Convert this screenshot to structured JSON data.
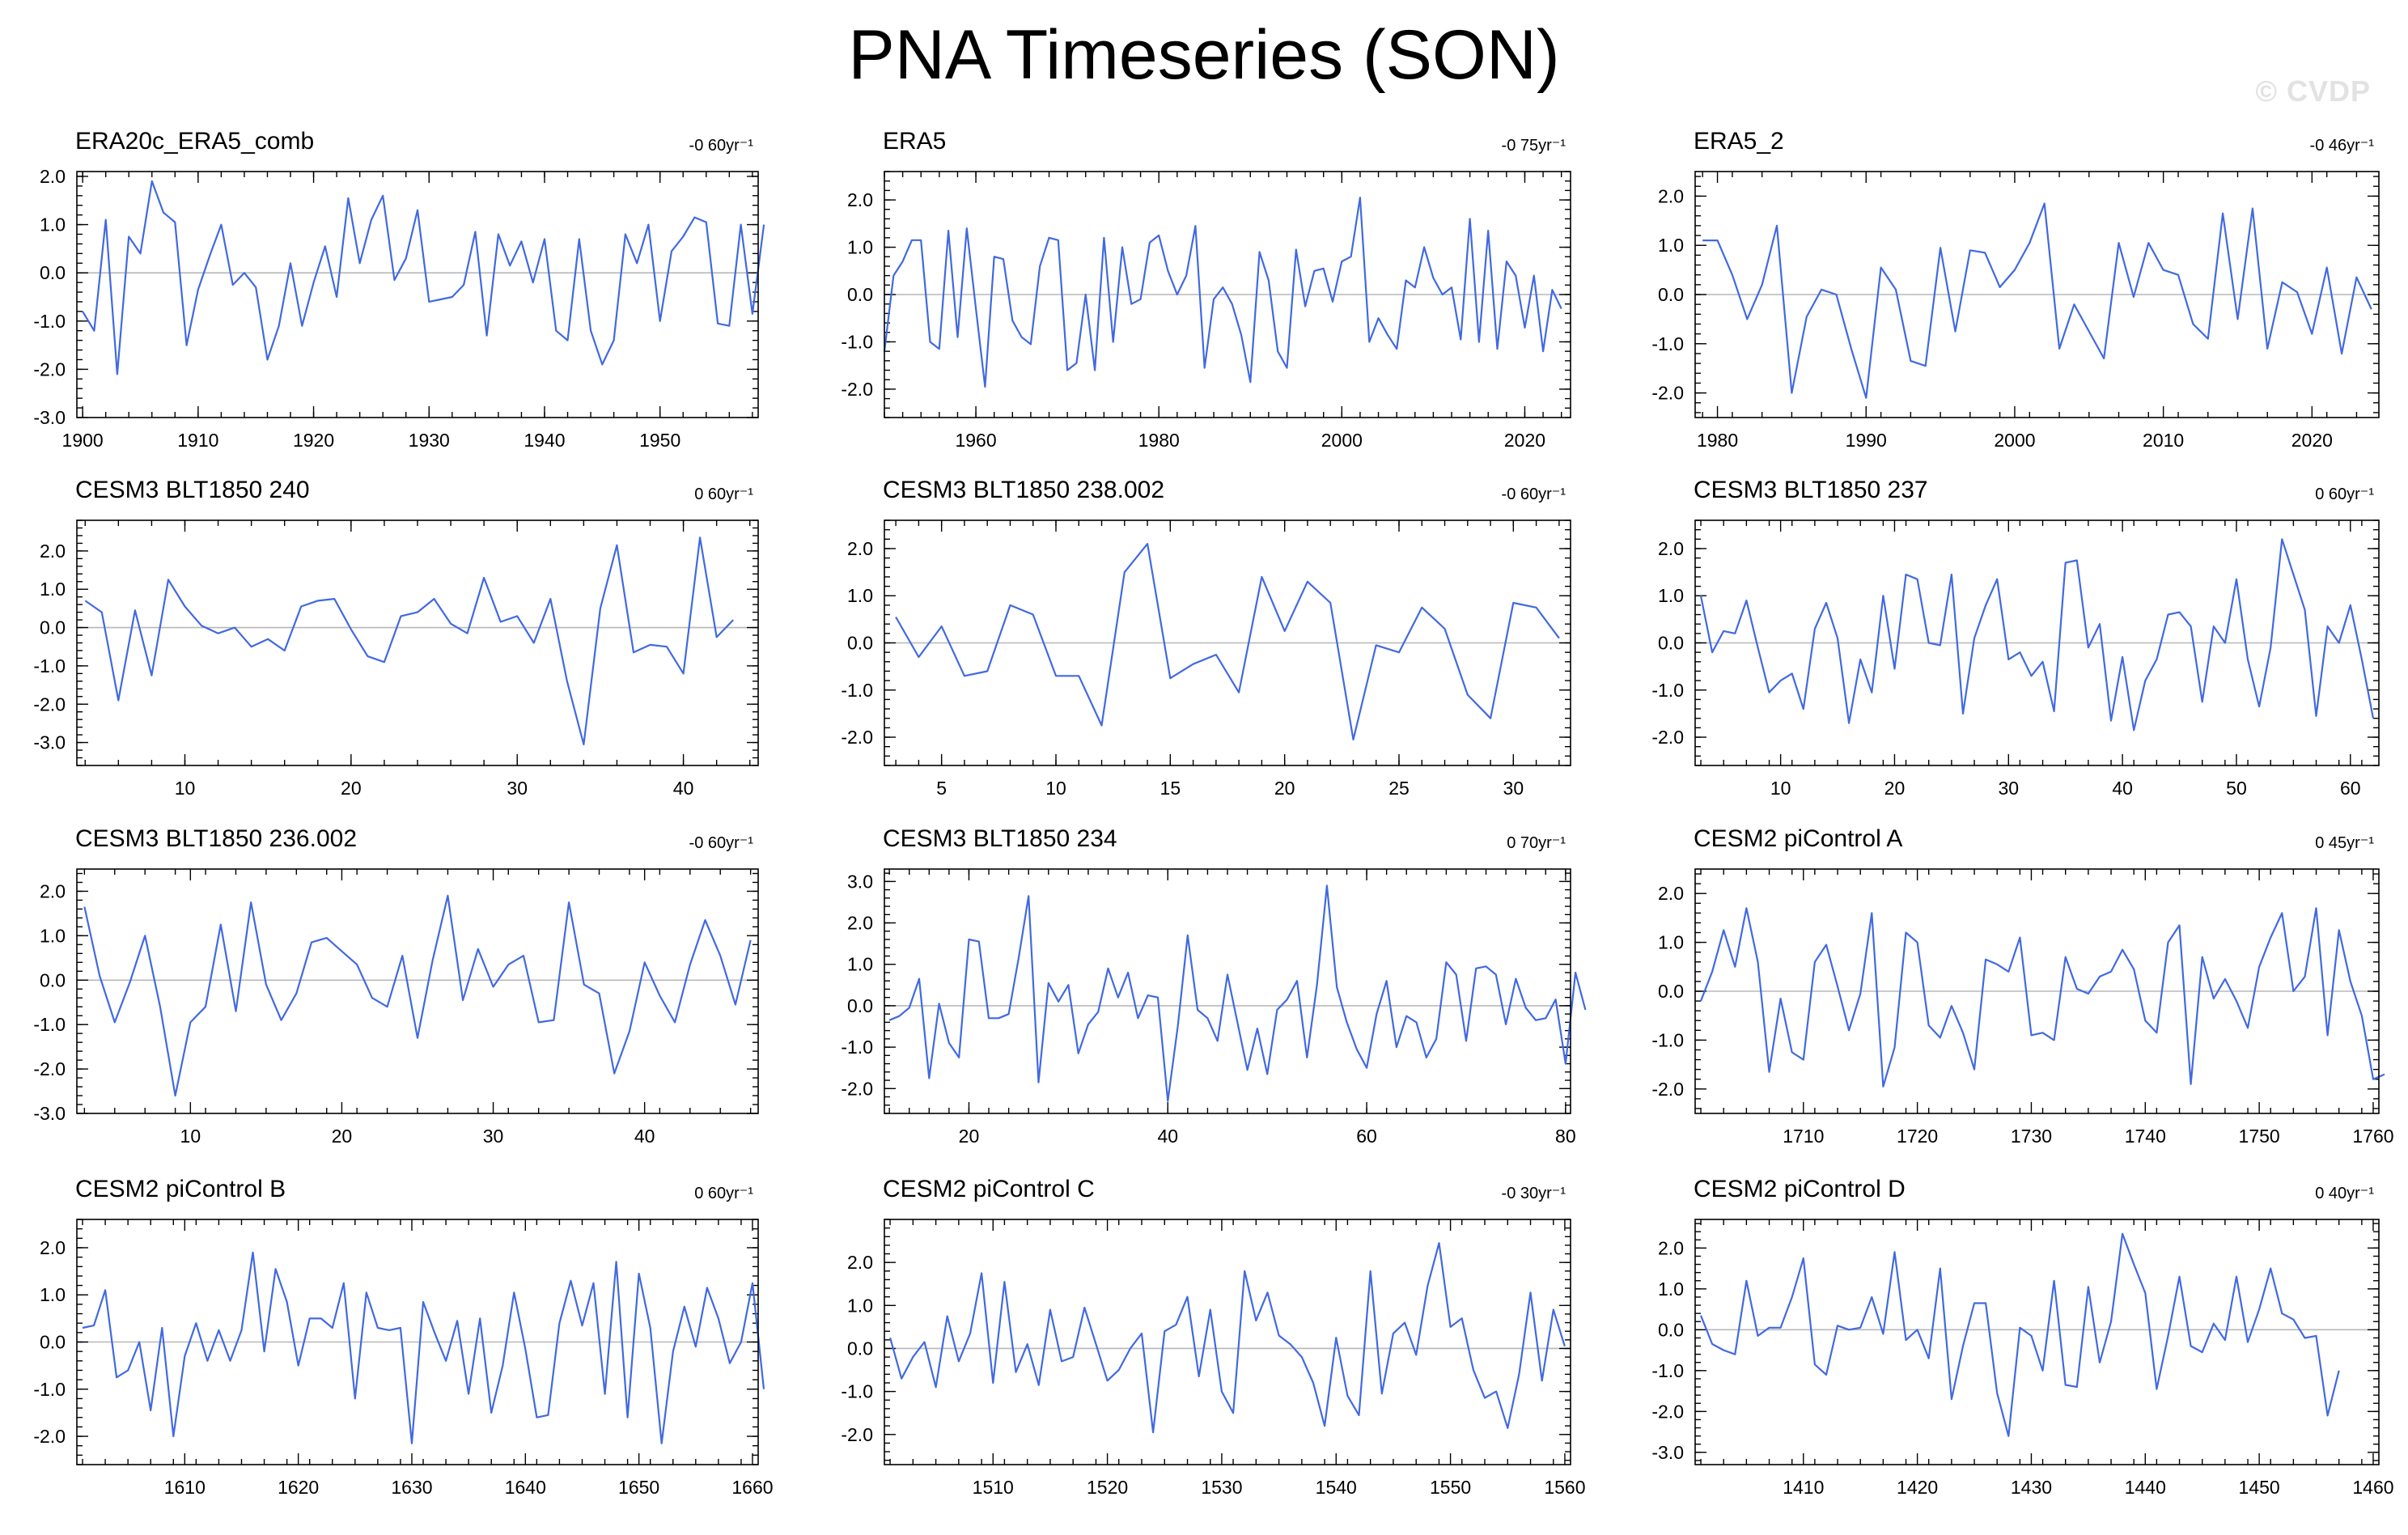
{
  "figure": {
    "title": "PNA Timeseries (SON)",
    "watermark": "© CVDP",
    "line_color": "#4169e1",
    "zero_line_color": "#b8b8b8"
  },
  "chart_data": [
    {
      "type": "line",
      "title": "ERA20c_ERA5_comb",
      "trend": "-0 60yr⁻¹",
      "xlim": [
        1899.5,
        1958.5
      ],
      "ylim": [
        -3.0,
        2.1
      ],
      "xticks": [
        1900,
        1910,
        1920,
        1930,
        1940,
        1950
      ],
      "yticks": [
        -3.0,
        -2.0,
        -1.0,
        0.0,
        1.0,
        2.0
      ],
      "ytick_labels": [
        "-3.0",
        "-2.0",
        "-1.0",
        "0.0",
        "1.0",
        "2.0"
      ],
      "x_start": 1900,
      "values": [
        -0.8,
        -1.2,
        1.1,
        -2.1,
        0.75,
        0.4,
        1.9,
        1.25,
        1.05,
        -1.5,
        -0.35,
        0.35,
        1.0,
        -0.25,
        0.0,
        -0.3,
        -1.8,
        -1.1,
        0.2,
        -1.1,
        -0.2,
        0.55,
        -0.5,
        1.55,
        0.2,
        1.1,
        1.6,
        -0.15,
        0.3,
        1.3,
        -0.6,
        -0.55,
        -0.5,
        -0.25,
        0.85,
        -1.3,
        0.8,
        0.15,
        0.65,
        -0.2,
        0.7,
        -1.2,
        -1.4,
        0.7,
        -1.2,
        -1.9,
        -1.4,
        0.8,
        0.2,
        1.0,
        -1.0,
        0.45,
        0.75,
        1.15,
        1.05,
        -1.05,
        -1.1,
        1.0,
        -0.85,
        1.0
      ]
    },
    {
      "type": "line",
      "title": "ERA5",
      "trend": "-0 75yr⁻¹",
      "xlim": [
        1950,
        2025
      ],
      "ylim": [
        -2.6,
        2.6
      ],
      "xticks": [
        1960,
        1980,
        2000,
        2020
      ],
      "yticks": [
        -2.0,
        -1.0,
        0.0,
        1.0,
        2.0
      ],
      "ytick_labels": [
        "-2.0",
        "-1.0",
        "0.0",
        "1.0",
        "2.0"
      ],
      "x_start": 1950,
      "values": [
        -1.2,
        0.4,
        0.7,
        1.15,
        1.15,
        -1.0,
        -1.15,
        1.35,
        -0.9,
        1.4,
        -0.3,
        -1.95,
        0.8,
        0.75,
        -0.55,
        -0.9,
        -1.05,
        0.6,
        1.2,
        1.15,
        -1.6,
        -1.45,
        0.0,
        -1.6,
        1.2,
        -1.0,
        1.0,
        -0.2,
        -0.1,
        1.1,
        1.25,
        0.5,
        0.0,
        0.4,
        1.45,
        -1.55,
        -0.1,
        0.15,
        -0.2,
        -0.85,
        -1.85,
        0.9,
        0.3,
        -1.2,
        -1.55,
        0.95,
        -0.25,
        0.5,
        0.55,
        -0.15,
        0.7,
        0.8,
        2.05,
        -1.0,
        -0.5,
        -0.85,
        -1.15,
        0.3,
        0.15,
        1.0,
        0.35,
        0.0,
        0.15,
        -0.95,
        1.6,
        -1.0,
        1.35,
        -1.15,
        0.7,
        0.4,
        -0.7,
        0.4,
        -1.2,
        0.1,
        -0.3
      ]
    },
    {
      "type": "line",
      "title": "ERA5_2",
      "trend": "-0 46yr⁻¹",
      "xlim": [
        1978.5,
        2024.5
      ],
      "ylim": [
        -2.5,
        2.5
      ],
      "xticks": [
        1980,
        1990,
        2000,
        2010,
        2020
      ],
      "yticks": [
        -2.0,
        -1.0,
        0.0,
        1.0,
        2.0
      ],
      "ytick_labels": [
        "-2.0",
        "-1.0",
        "0.0",
        "1.0",
        "2.0"
      ],
      "x_start": 1979,
      "values": [
        1.1,
        1.1,
        0.4,
        -0.5,
        0.2,
        1.4,
        -2.0,
        -0.45,
        0.1,
        0.0,
        -1.1,
        -2.1,
        0.55,
        0.1,
        -1.35,
        -1.45,
        0.95,
        -0.75,
        0.9,
        0.85,
        0.15,
        0.5,
        1.05,
        1.85,
        -1.1,
        -0.2,
        -0.75,
        -1.3,
        1.05,
        -0.05,
        1.05,
        0.5,
        0.4,
        -0.6,
        -0.9,
        1.65,
        -0.5,
        1.75,
        -1.1,
        0.25,
        0.05,
        -0.8,
        0.55,
        -1.2,
        0.35,
        -0.3
      ]
    },
    {
      "type": "line",
      "title": "CESM3 BLT1850 240",
      "trend": "0 60yr⁻¹",
      "xlim": [
        3.5,
        44.5
      ],
      "ylim": [
        -3.6,
        2.8
      ],
      "xticks": [
        10,
        20,
        30,
        40
      ],
      "yticks": [
        -3.0,
        -2.0,
        -1.0,
        0.0,
        1.0,
        2.0
      ],
      "ytick_labels": [
        "-3.0",
        "-2.0",
        "-1.0",
        "0.0",
        "1.0",
        "2.0"
      ],
      "x_start": 4,
      "values": [
        0.7,
        0.4,
        -1.9,
        0.45,
        -1.25,
        1.25,
        0.55,
        0.05,
        -0.15,
        0.0,
        -0.5,
        -0.3,
        -0.6,
        0.55,
        0.7,
        0.75,
        -0.05,
        -0.75,
        -0.9,
        0.3,
        0.4,
        0.75,
        0.1,
        -0.15,
        1.3,
        0.15,
        0.3,
        -0.4,
        0.75,
        -1.4,
        -3.05,
        0.5,
        2.15,
        -0.65,
        -0.45,
        -0.5,
        -1.2,
        2.35,
        -0.25,
        0.2
      ]
    },
    {
      "type": "line",
      "title": "CESM3 BLT1850 238.002",
      "trend": "-0 60yr⁻¹",
      "xlim": [
        2.5,
        32.5
      ],
      "ylim": [
        -2.6,
        2.6
      ],
      "xticks": [
        5,
        10,
        15,
        20,
        25,
        30
      ],
      "yticks": [
        -2.0,
        -1.0,
        0.0,
        1.0,
        2.0
      ],
      "ytick_labels": [
        "-2.0",
        "-1.0",
        "0.0",
        "1.0",
        "2.0"
      ],
      "x_start": 3,
      "values": [
        0.55,
        -0.3,
        0.35,
        -0.7,
        -0.6,
        0.8,
        0.6,
        -0.7,
        -0.7,
        -1.75,
        1.5,
        2.1,
        -0.75,
        -0.45,
        -0.25,
        -1.05,
        1.4,
        0.25,
        1.3,
        0.85,
        -2.05,
        -0.05,
        -0.2,
        0.75,
        0.3,
        -1.1,
        -1.6,
        0.85,
        0.75,
        0.1
      ]
    },
    {
      "type": "line",
      "title": "CESM3 BLT1850 237",
      "trend": "0 60yr⁻¹",
      "xlim": [
        2.5,
        62.5
      ],
      "ylim": [
        -2.6,
        2.6
      ],
      "xticks": [
        10,
        20,
        30,
        40,
        50,
        60
      ],
      "yticks": [
        -2.0,
        -1.0,
        0.0,
        1.0,
        2.0
      ],
      "ytick_labels": [
        "-2.0",
        "-1.0",
        "0.0",
        "1.0",
        "2.0"
      ],
      "x_start": 3,
      "values": [
        1.0,
        -0.2,
        0.25,
        0.2,
        0.9,
        -0.1,
        -1.05,
        -0.8,
        -0.65,
        -1.4,
        0.3,
        0.85,
        0.1,
        -1.7,
        -0.35,
        -1.05,
        1.0,
        -0.55,
        1.45,
        1.35,
        0.0,
        -0.05,
        1.45,
        -1.5,
        0.1,
        0.8,
        1.35,
        -0.35,
        -0.2,
        -0.7,
        -0.4,
        -1.45,
        1.7,
        1.75,
        -0.1,
        0.4,
        -1.65,
        -0.3,
        -1.85,
        -0.8,
        -0.35,
        0.6,
        0.65,
        0.35,
        -1.25,
        0.35,
        0.0,
        1.35,
        -0.35,
        -1.35,
        -0.1,
        2.2,
        1.45,
        0.7,
        -1.55,
        0.35,
        0.0,
        0.8,
        -0.35,
        -1.6
      ]
    },
    {
      "type": "line",
      "title": "CESM3 BLT1850 236.002",
      "trend": "-0 60yr⁻¹",
      "xlim": [
        2.5,
        47.5
      ],
      "ylim": [
        -3.0,
        2.5
      ],
      "xticks": [
        10,
        20,
        30,
        40
      ],
      "yticks": [
        -3.0,
        -2.0,
        -1.0,
        0.0,
        1.0,
        2.0
      ],
      "ytick_labels": [
        "-3.0",
        "-2.0",
        "-1.0",
        "0.0",
        "1.0",
        "2.0"
      ],
      "x_start": 3,
      "values": [
        1.65,
        0.1,
        -0.95,
        -0.05,
        1.0,
        -0.6,
        -2.6,
        -0.95,
        -0.6,
        1.25,
        -0.7,
        1.75,
        -0.1,
        -0.9,
        -0.3,
        0.85,
        0.95,
        0.65,
        0.35,
        -0.4,
        -0.6,
        0.55,
        -1.3,
        0.45,
        1.9,
        -0.45,
        0.7,
        -0.15,
        0.35,
        0.55,
        -0.95,
        -0.9,
        1.75,
        -0.1,
        -0.3,
        -2.1,
        -1.15,
        0.4,
        -0.35,
        -0.95,
        0.35,
        1.35,
        0.55,
        -0.55,
        0.9
      ]
    },
    {
      "type": "line",
      "title": "CESM3 BLT1850 234",
      "trend": "0 70yr⁻¹",
      "xlim": [
        11.5,
        80.5
      ],
      "ylim": [
        -2.6,
        3.3
      ],
      "xticks": [
        20,
        40,
        60,
        80
      ],
      "yticks": [
        -2.0,
        -1.0,
        0.0,
        1.0,
        2.0,
        3.0
      ],
      "ytick_labels": [
        "-2.0",
        "-1.0",
        "0.0",
        "1.0",
        "2.0",
        "3.0"
      ],
      "x_start": 12,
      "values": [
        -0.35,
        -0.25,
        -0.05,
        0.65,
        -1.75,
        0.05,
        -0.9,
        -1.25,
        1.6,
        1.55,
        -0.3,
        -0.3,
        -0.2,
        1.15,
        2.65,
        -1.85,
        0.55,
        0.1,
        0.5,
        -1.15,
        -0.45,
        -0.15,
        0.9,
        0.2,
        0.8,
        -0.3,
        0.25,
        0.2,
        -2.3,
        -0.5,
        1.7,
        -0.1,
        -0.3,
        -0.85,
        0.75,
        -0.4,
        -1.55,
        -0.55,
        -1.65,
        -0.1,
        0.15,
        0.6,
        -1.25,
        0.5,
        2.9,
        0.45,
        -0.4,
        -1.05,
        -1.5,
        -0.2,
        0.6,
        -1.0,
        -0.25,
        -0.4,
        -1.25,
        -0.8,
        1.05,
        0.75,
        -0.85,
        0.9,
        0.95,
        0.75,
        -0.45,
        0.65,
        -0.05,
        -0.35,
        -0.3,
        0.15,
        -1.4,
        0.8,
        -0.1
      ]
    },
    {
      "type": "line",
      "title": "CESM2 piControl A",
      "trend": "0 45yr⁻¹",
      "xlim": [
        1700.5,
        1760.5
      ],
      "ylim": [
        -2.5,
        2.5
      ],
      "xticks": [
        1710,
        1720,
        1730,
        1740,
        1750,
        1760
      ],
      "yticks": [
        -2.0,
        -1.0,
        0.0,
        1.0,
        2.0
      ],
      "ytick_labels": [
        "-2.0",
        "-1.0",
        "0.0",
        "1.0",
        "2.0"
      ],
      "x_start": 1701,
      "values": [
        -0.2,
        0.4,
        1.25,
        0.5,
        1.7,
        0.6,
        -1.65,
        -0.15,
        -1.25,
        -1.4,
        0.6,
        0.95,
        0.1,
        -0.8,
        -0.05,
        1.6,
        -1.95,
        -1.15,
        1.2,
        1.0,
        -0.7,
        -0.95,
        -0.3,
        -0.85,
        -1.6,
        0.65,
        0.55,
        0.4,
        1.1,
        -0.9,
        -0.85,
        -1.0,
        0.7,
        0.05,
        -0.05,
        0.3,
        0.4,
        0.85,
        0.45,
        -0.6,
        -0.85,
        1.0,
        1.35,
        -1.9,
        0.7,
        -0.15,
        0.25,
        -0.2,
        -0.75,
        0.5,
        1.1,
        1.6,
        0.0,
        0.3,
        1.7,
        -0.9,
        1.25,
        0.2,
        -0.5,
        -1.8,
        -1.7
      ]
    },
    {
      "type": "line",
      "title": "CESM2 piControl B",
      "trend": "0 60yr⁻¹",
      "xlim": [
        1600.5,
        1660.5
      ],
      "ylim": [
        -2.6,
        2.6
      ],
      "xticks": [
        1610,
        1620,
        1630,
        1640,
        1650,
        1660
      ],
      "yticks": [
        -2.0,
        -1.0,
        0.0,
        1.0,
        2.0
      ],
      "ytick_labels": [
        "-2.0",
        "-1.0",
        "0.0",
        "1.0",
        "2.0"
      ],
      "x_start": 1601,
      "values": [
        0.3,
        0.35,
        1.1,
        -0.75,
        -0.6,
        0.0,
        -1.45,
        0.3,
        -2.0,
        -0.3,
        0.4,
        -0.4,
        0.25,
        -0.4,
        0.25,
        1.9,
        -0.2,
        1.55,
        0.85,
        -0.5,
        0.5,
        0.5,
        0.3,
        1.25,
        -1.2,
        1.05,
        0.3,
        0.25,
        0.3,
        -2.15,
        0.85,
        0.2,
        -0.4,
        0.45,
        -1.1,
        0.5,
        -1.5,
        -0.5,
        1.05,
        -0.15,
        -1.6,
        -1.55,
        0.4,
        1.3,
        0.35,
        1.25,
        -1.1,
        1.7,
        -1.6,
        1.45,
        0.3,
        -2.15,
        -0.2,
        0.75,
        -0.1,
        1.15,
        0.5,
        -0.45,
        0.0,
        1.25,
        -1.0
      ]
    },
    {
      "type": "line",
      "title": "CESM2 piControl C",
      "trend": "-0 30yr⁻¹",
      "xlim": [
        1500.5,
        1560.5
      ],
      "ylim": [
        -2.7,
        3.0
      ],
      "xticks": [
        1510,
        1520,
        1530,
        1540,
        1550,
        1560
      ],
      "yticks": [
        -2.0,
        -1.0,
        0.0,
        1.0,
        2.0
      ],
      "ytick_labels": [
        "-2.0",
        "-1.0",
        "0.0",
        "1.0",
        "2.0"
      ],
      "x_start": 1501,
      "values": [
        0.25,
        -0.7,
        -0.2,
        0.15,
        -0.9,
        0.75,
        -0.3,
        0.35,
        1.75,
        -0.8,
        1.55,
        -0.55,
        0.1,
        -0.85,
        0.9,
        -0.3,
        -0.2,
        0.95,
        0.1,
        -0.75,
        -0.5,
        0.0,
        0.35,
        -1.95,
        0.4,
        0.55,
        1.2,
        -0.65,
        0.9,
        -1.0,
        -1.5,
        1.8,
        0.65,
        1.3,
        0.3,
        0.1,
        -0.2,
        -0.8,
        -1.8,
        0.25,
        -1.1,
        -1.55,
        1.8,
        -1.05,
        0.35,
        0.6,
        -0.15,
        1.45,
        2.45,
        0.5,
        0.7,
        -0.5,
        -1.15,
        -1.0,
        -1.85,
        -0.6,
        1.3,
        -0.75,
        0.9,
        0.05
      ]
    },
    {
      "type": "line",
      "title": "CESM2 piControl D",
      "trend": "0 40yr⁻¹",
      "xlim": [
        1400.5,
        1460.5
      ],
      "ylim": [
        -3.3,
        2.7
      ],
      "xticks": [
        1410,
        1420,
        1430,
        1440,
        1450,
        1460
      ],
      "yticks": [
        -3.0,
        -2.0,
        -1.0,
        0.0,
        1.0,
        2.0
      ],
      "ytick_labels": [
        "-3.0",
        "-2.0",
        "-1.0",
        "0.0",
        "1.0",
        "2.0"
      ],
      "x_start": 1401,
      "values": [
        0.35,
        -0.35,
        -0.5,
        -0.6,
        1.2,
        -0.15,
        0.05,
        0.05,
        0.8,
        1.75,
        -0.85,
        -1.1,
        0.1,
        0.0,
        0.05,
        0.8,
        -0.1,
        1.9,
        -0.25,
        0.0,
        -0.7,
        1.5,
        -1.7,
        -0.4,
        0.65,
        0.65,
        -1.55,
        -2.6,
        0.05,
        -0.15,
        -1.0,
        1.2,
        -1.35,
        -1.4,
        1.05,
        -0.8,
        0.2,
        2.35,
        1.6,
        0.9,
        -1.45,
        -0.15,
        1.3,
        -0.4,
        -0.55,
        0.15,
        -0.25,
        1.3,
        -0.3,
        0.5,
        1.5,
        0.4,
        0.25,
        -0.2,
        -0.15,
        -2.1,
        -1.0
      ]
    }
  ]
}
